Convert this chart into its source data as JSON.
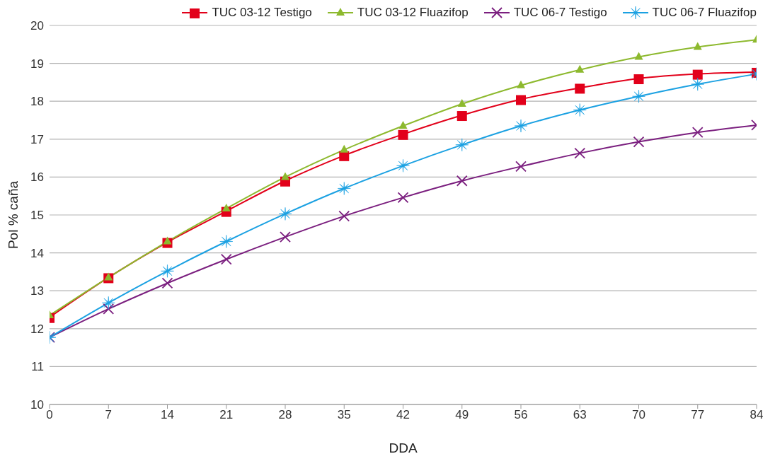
{
  "chart_data": {
    "type": "line",
    "xlabel": "DDA",
    "ylabel": "Pol % caña",
    "x": [
      0,
      7,
      14,
      21,
      28,
      35,
      42,
      49,
      56,
      63,
      70,
      77,
      84
    ],
    "series": [
      {
        "name": "TUC 03-12 Testigo",
        "color": "#e2001a",
        "marker": "square",
        "values": [
          12.3,
          13.35,
          14.28,
          15.1,
          15.9,
          16.57,
          17.13,
          17.63,
          18.05,
          18.35,
          18.6,
          18.72,
          18.77
        ]
      },
      {
        "name": "TUC 03-12 Fluazifop",
        "color": "#8db92e",
        "marker": "triangle",
        "values": [
          12.35,
          13.35,
          14.3,
          15.17,
          16.0,
          16.72,
          17.35,
          17.93,
          18.42,
          18.83,
          19.17,
          19.43,
          19.62
        ]
      },
      {
        "name": "TUC 06-7 Testigo",
        "color": "#7b1f7f",
        "marker": "cross",
        "values": [
          11.77,
          12.52,
          13.2,
          13.83,
          14.42,
          14.97,
          15.46,
          15.9,
          16.28,
          16.63,
          16.93,
          17.18,
          17.37
        ]
      },
      {
        "name": "TUC 06-7 Fluazifop",
        "color": "#1ba1e2",
        "marker": "star",
        "values": [
          11.77,
          12.68,
          13.52,
          14.3,
          15.03,
          15.7,
          16.3,
          16.85,
          17.35,
          17.77,
          18.13,
          18.45,
          18.72
        ]
      }
    ],
    "xlim": [
      0,
      84
    ],
    "xticks": [
      0,
      7,
      14,
      21,
      28,
      35,
      42,
      49,
      56,
      63,
      70,
      77,
      84
    ],
    "ylim": [
      10,
      20
    ],
    "yticks": [
      10,
      11,
      12,
      13,
      14,
      15,
      16,
      17,
      18,
      19,
      20
    ],
    "grid": "y",
    "legend": "top right",
    "line_style": "solid"
  }
}
